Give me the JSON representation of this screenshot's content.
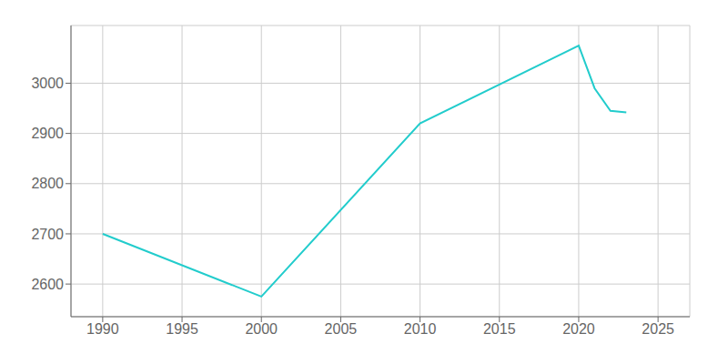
{
  "chart_data": {
    "type": "line",
    "x": [
      1990,
      2000,
      2010,
      2020,
      2021,
      2022,
      2023
    ],
    "values": [
      2700,
      2575,
      2920,
      3075,
      2990,
      2945,
      2942
    ],
    "color": "#22CCCC",
    "xlim": [
      1988,
      2027
    ],
    "ylim": [
      2535,
      3115
    ],
    "xticks": [
      1990,
      1995,
      2000,
      2005,
      2010,
      2015,
      2020,
      2025
    ],
    "yticks": [
      2600,
      2700,
      2800,
      2900,
      3000
    ],
    "grid": true
  }
}
